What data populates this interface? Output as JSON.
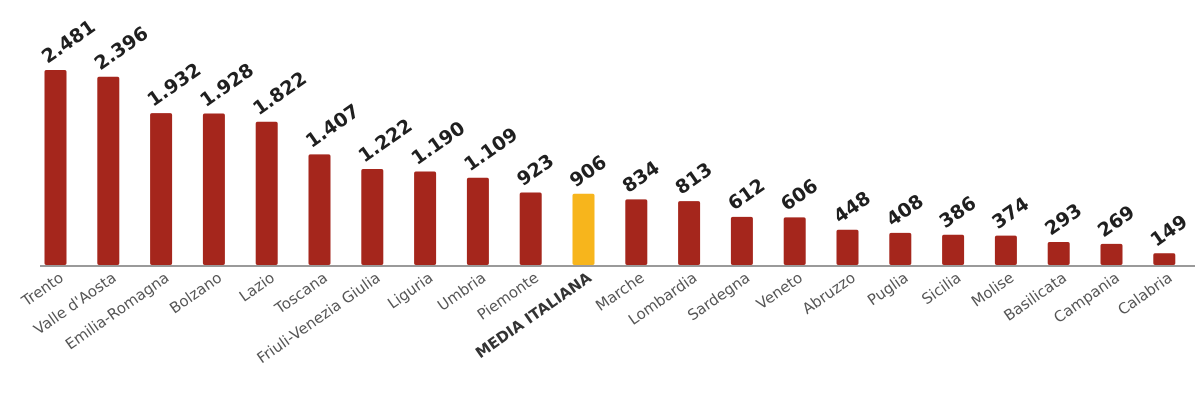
{
  "chart_data": {
    "type": "bar",
    "categories": [
      "Trento",
      "Valle d'Aosta",
      "Emilia-Romagna",
      "Bolzano",
      "Lazio",
      "Toscana",
      "Friuli-Venezia Giulia",
      "Liguria",
      "Umbria",
      "Piemonte",
      "MEDIA ITALIANA",
      "Marche",
      "Lombardia",
      "Sardegna",
      "Veneto",
      "Abruzzo",
      "Puglia",
      "Sicilia",
      "Molise",
      "Basilicata",
      "Campania",
      "Calabria"
    ],
    "values": [
      2481,
      2396,
      1932,
      1928,
      1822,
      1407,
      1222,
      1190,
      1109,
      923,
      906,
      834,
      813,
      612,
      606,
      448,
      408,
      386,
      374,
      293,
      269,
      149
    ],
    "value_labels": [
      "2.481",
      "2.396",
      "1.932",
      "1.928",
      "1.822",
      "1.407",
      "1.222",
      "1.190",
      "1.109",
      "923",
      "906",
      "834",
      "813",
      "612",
      "606",
      "448",
      "408",
      "386",
      "374",
      "293",
      "269",
      "149"
    ],
    "highlight_index": 10,
    "colors": {
      "bar": "#a5261c",
      "highlight": "#f7b51c",
      "baseline": "#9a9a9a"
    },
    "ylim": [
      0,
      2481
    ],
    "grid": false,
    "legend": "none"
  }
}
